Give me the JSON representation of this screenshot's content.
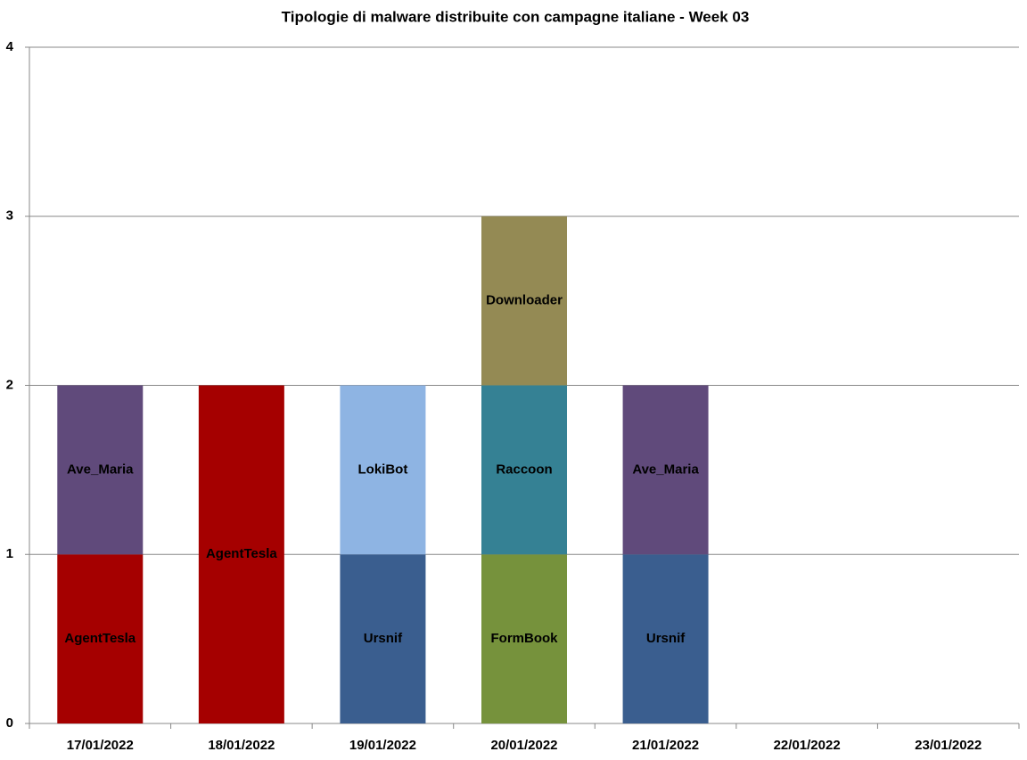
{
  "chart_data": {
    "type": "stacked_bar",
    "title": "Tipologie  di malware distribuite con campagne italiane - Week 03",
    "categories": [
      "17/01/2022",
      "18/01/2022",
      "19/01/2022",
      "20/01/2022",
      "21/01/2022",
      "22/01/2022",
      "23/01/2022"
    ],
    "series": [
      {
        "name": "AgentTesla",
        "color": "#a50000",
        "values": [
          1,
          2,
          0,
          0,
          0,
          0,
          0
        ]
      },
      {
        "name": "Ursnif",
        "color": "#3a5e8f",
        "values": [
          0,
          0,
          1,
          0,
          1,
          0,
          0
        ]
      },
      {
        "name": "FormBook",
        "color": "#76923c",
        "values": [
          0,
          0,
          0,
          1,
          0,
          0,
          0
        ]
      },
      {
        "name": "Ave_Maria",
        "color": "#604a7b",
        "values": [
          1,
          0,
          0,
          0,
          1,
          0,
          0
        ]
      },
      {
        "name": "LokiBot",
        "color": "#8eb4e3",
        "values": [
          0,
          0,
          1,
          0,
          0,
          0,
          0
        ]
      },
      {
        "name": "Raccoon",
        "color": "#358194",
        "values": [
          0,
          0,
          0,
          1,
          0,
          0,
          0
        ]
      },
      {
        "name": "Downloader",
        "color": "#948a54",
        "values": [
          0,
          0,
          0,
          1,
          0,
          0,
          0
        ]
      }
    ],
    "ylim": [
      0,
      4
    ],
    "yticks": [
      0,
      1,
      2,
      3,
      4
    ],
    "grid": true
  }
}
